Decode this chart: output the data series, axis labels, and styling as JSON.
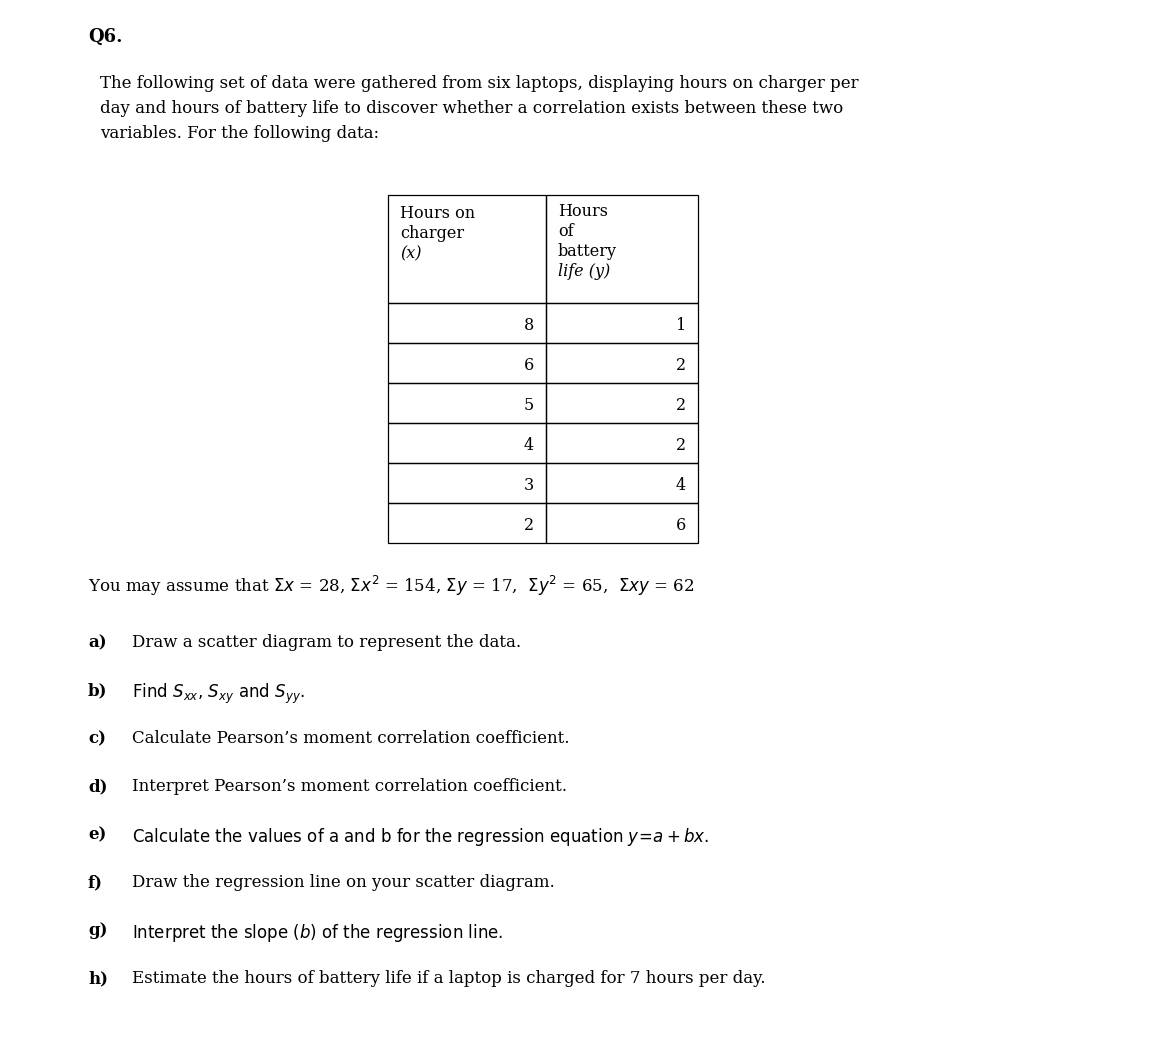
{
  "title": "Q6.",
  "intro_line1": "The following set of data were gathered from six laptops, displaying hours on charger per",
  "intro_line2": "day and hours of battery life to discover whether a correlation exists between these two",
  "intro_line3": "variables. For the following data:",
  "table_data_x": [
    8,
    6,
    5,
    4,
    3,
    2
  ],
  "table_data_y": [
    1,
    2,
    2,
    2,
    4,
    6
  ],
  "bg_color": "#ffffff",
  "text_color": "#000000",
  "title_fs": 13,
  "body_fs": 12,
  "table_fs": 11.5
}
